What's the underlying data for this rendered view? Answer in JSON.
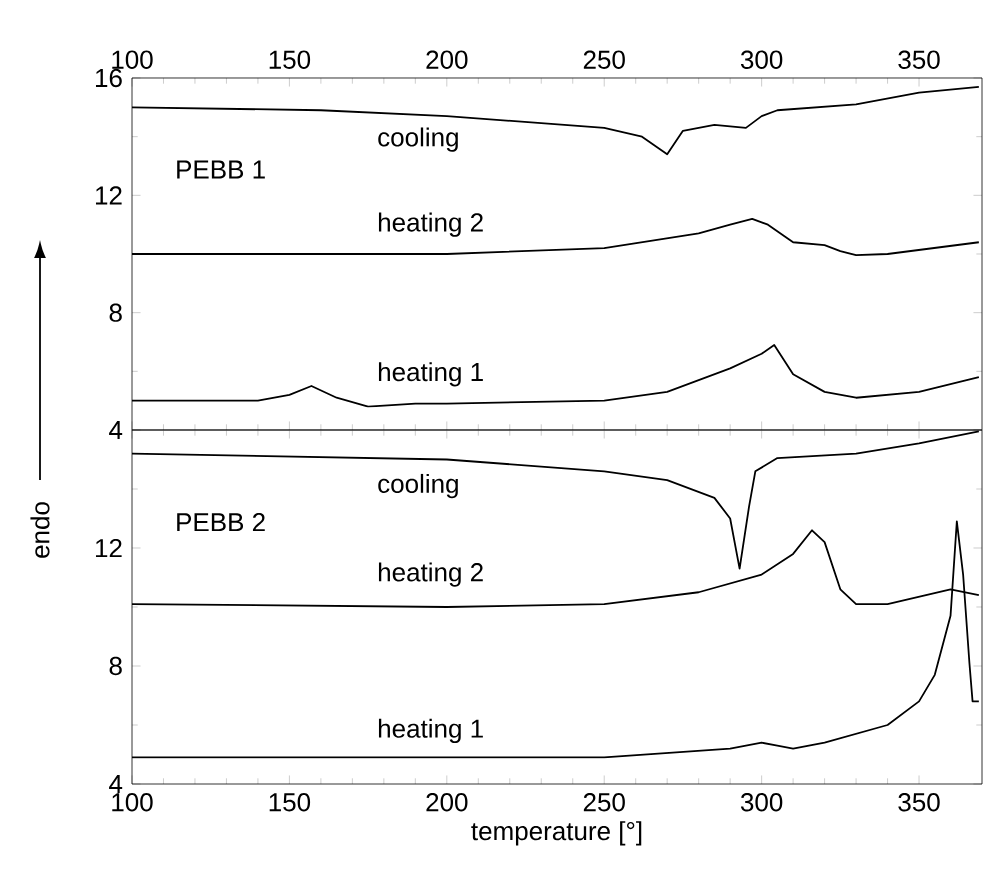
{
  "chart_data": [
    {
      "type": "line",
      "ylabel": "endo",
      "annotations": [
        "PEBB 1"
      ],
      "xlim": [
        100,
        370
      ],
      "xticks": [
        100,
        150,
        200,
        250,
        300,
        350
      ],
      "ylim": [
        4,
        16
      ],
      "yticks": [
        4,
        8,
        12,
        16
      ],
      "series": [
        {
          "name": "cooling",
          "color": "#000000",
          "x": [
            100,
            160,
            200,
            250,
            262,
            270,
            275,
            285,
            295,
            300,
            305,
            330,
            350,
            369
          ],
          "values": [
            15.0,
            14.9,
            14.7,
            14.3,
            14.0,
            13.4,
            14.2,
            14.4,
            14.3,
            14.7,
            14.9,
            15.1,
            15.5,
            15.7
          ]
        },
        {
          "name": "heating 2",
          "color": "#000000",
          "x": [
            100,
            200,
            250,
            280,
            290,
            297,
            302,
            310,
            320,
            325,
            330,
            340,
            369
          ],
          "values": [
            10.0,
            10.0,
            10.2,
            10.7,
            11.0,
            11.2,
            11.0,
            10.4,
            10.3,
            10.1,
            9.96,
            10.0,
            10.4
          ]
        },
        {
          "name": "heating 1",
          "color": "#000000",
          "x": [
            100,
            140,
            150,
            157,
            165,
            175,
            190,
            200,
            250,
            270,
            290,
            300,
            304,
            310,
            320,
            330,
            350,
            369
          ],
          "values": [
            5.0,
            5.0,
            5.2,
            5.5,
            5.1,
            4.8,
            4.9,
            4.9,
            5.0,
            5.3,
            6.1,
            6.6,
            6.9,
            5.9,
            5.3,
            5.1,
            5.3,
            5.8
          ]
        }
      ]
    },
    {
      "type": "line",
      "xlabel": "temperature [°]",
      "annotations": [
        "PEBB 2"
      ],
      "xlim": [
        100,
        370
      ],
      "xticks": [
        100,
        150,
        200,
        250,
        300,
        350
      ],
      "ylim": [
        4,
        16
      ],
      "yticks": [
        4,
        8,
        12,
        {
          "value": 16,
          "label": null
        }
      ],
      "series": [
        {
          "name": "cooling",
          "color": "#000000",
          "x": [
            100,
            200,
            250,
            270,
            285,
            290,
            293,
            296,
            298,
            305,
            330,
            350,
            369
          ],
          "values": [
            15.2,
            15.0,
            14.6,
            14.3,
            13.7,
            13.0,
            11.3,
            13.4,
            14.6,
            15.05,
            15.2,
            15.55,
            15.95
          ]
        },
        {
          "name": "heating 2",
          "color": "#000000",
          "x": [
            100,
            200,
            250,
            280,
            300,
            310,
            316,
            320,
            325,
            330,
            340,
            360,
            369
          ],
          "values": [
            10.1,
            10.0,
            10.1,
            10.5,
            11.1,
            11.8,
            12.6,
            12.2,
            10.6,
            10.1,
            10.1,
            10.6,
            10.4
          ]
        },
        {
          "name": "heating 1",
          "color": "#000000",
          "x": [
            100,
            200,
            250,
            290,
            300,
            305,
            310,
            320,
            340,
            350,
            355,
            360,
            362,
            364,
            366,
            367,
            369
          ],
          "values": [
            4.9,
            4.9,
            4.9,
            5.2,
            5.4,
            5.3,
            5.2,
            5.4,
            6.0,
            6.8,
            7.7,
            9.7,
            12.9,
            11.1,
            8.1,
            6.8,
            6.8
          ]
        }
      ]
    }
  ]
}
